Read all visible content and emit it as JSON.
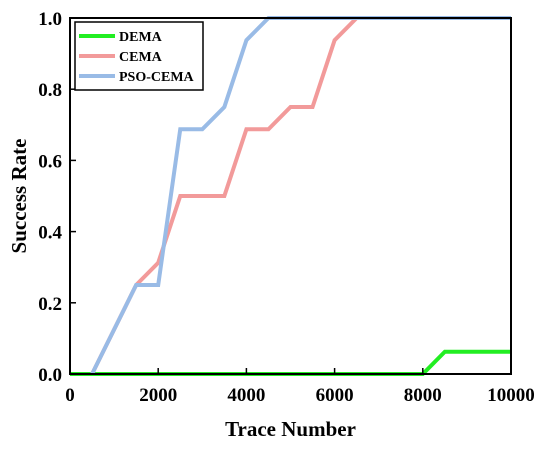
{
  "chart_data": {
    "type": "line",
    "xlabel": "Trace Number",
    "ylabel": "Success Rate",
    "xlim": [
      0,
      10000
    ],
    "ylim": [
      0.0,
      1.0
    ],
    "x_ticks": [
      "0",
      "2000",
      "4000",
      "6000",
      "8000",
      "10000"
    ],
    "y_ticks": [
      "0.0",
      "0.2",
      "0.4",
      "0.6",
      "0.8",
      "1.0"
    ],
    "grid": false,
    "legend_position": "top-left",
    "series": [
      {
        "name": "DEMA",
        "color": "#22ee22",
        "points": [
          [
            0,
            0.0
          ],
          [
            8000,
            0.0
          ],
          [
            8500,
            0.0625
          ],
          [
            10000,
            0.0625
          ]
        ]
      },
      {
        "name": "CEMA",
        "color": "#f29a9a",
        "points": [
          [
            500,
            0.0
          ],
          [
            1500,
            0.25
          ],
          [
            2000,
            0.3125
          ],
          [
            2500,
            0.5
          ],
          [
            3000,
            0.5
          ],
          [
            3500,
            0.5
          ],
          [
            4000,
            0.6875
          ],
          [
            4500,
            0.6875
          ],
          [
            5000,
            0.75
          ],
          [
            5500,
            0.75
          ],
          [
            6000,
            0.9375
          ],
          [
            6500,
            1.0
          ],
          [
            10000,
            1.0
          ]
        ]
      },
      {
        "name": "PSO-CEMA",
        "color": "#99bbe6",
        "points": [
          [
            500,
            0.0
          ],
          [
            1500,
            0.25
          ],
          [
            2000,
            0.25
          ],
          [
            2500,
            0.6875
          ],
          [
            3000,
            0.6875
          ],
          [
            3500,
            0.75
          ],
          [
            4000,
            0.9375
          ],
          [
            4500,
            1.0
          ],
          [
            10000,
            1.0
          ]
        ]
      }
    ]
  }
}
